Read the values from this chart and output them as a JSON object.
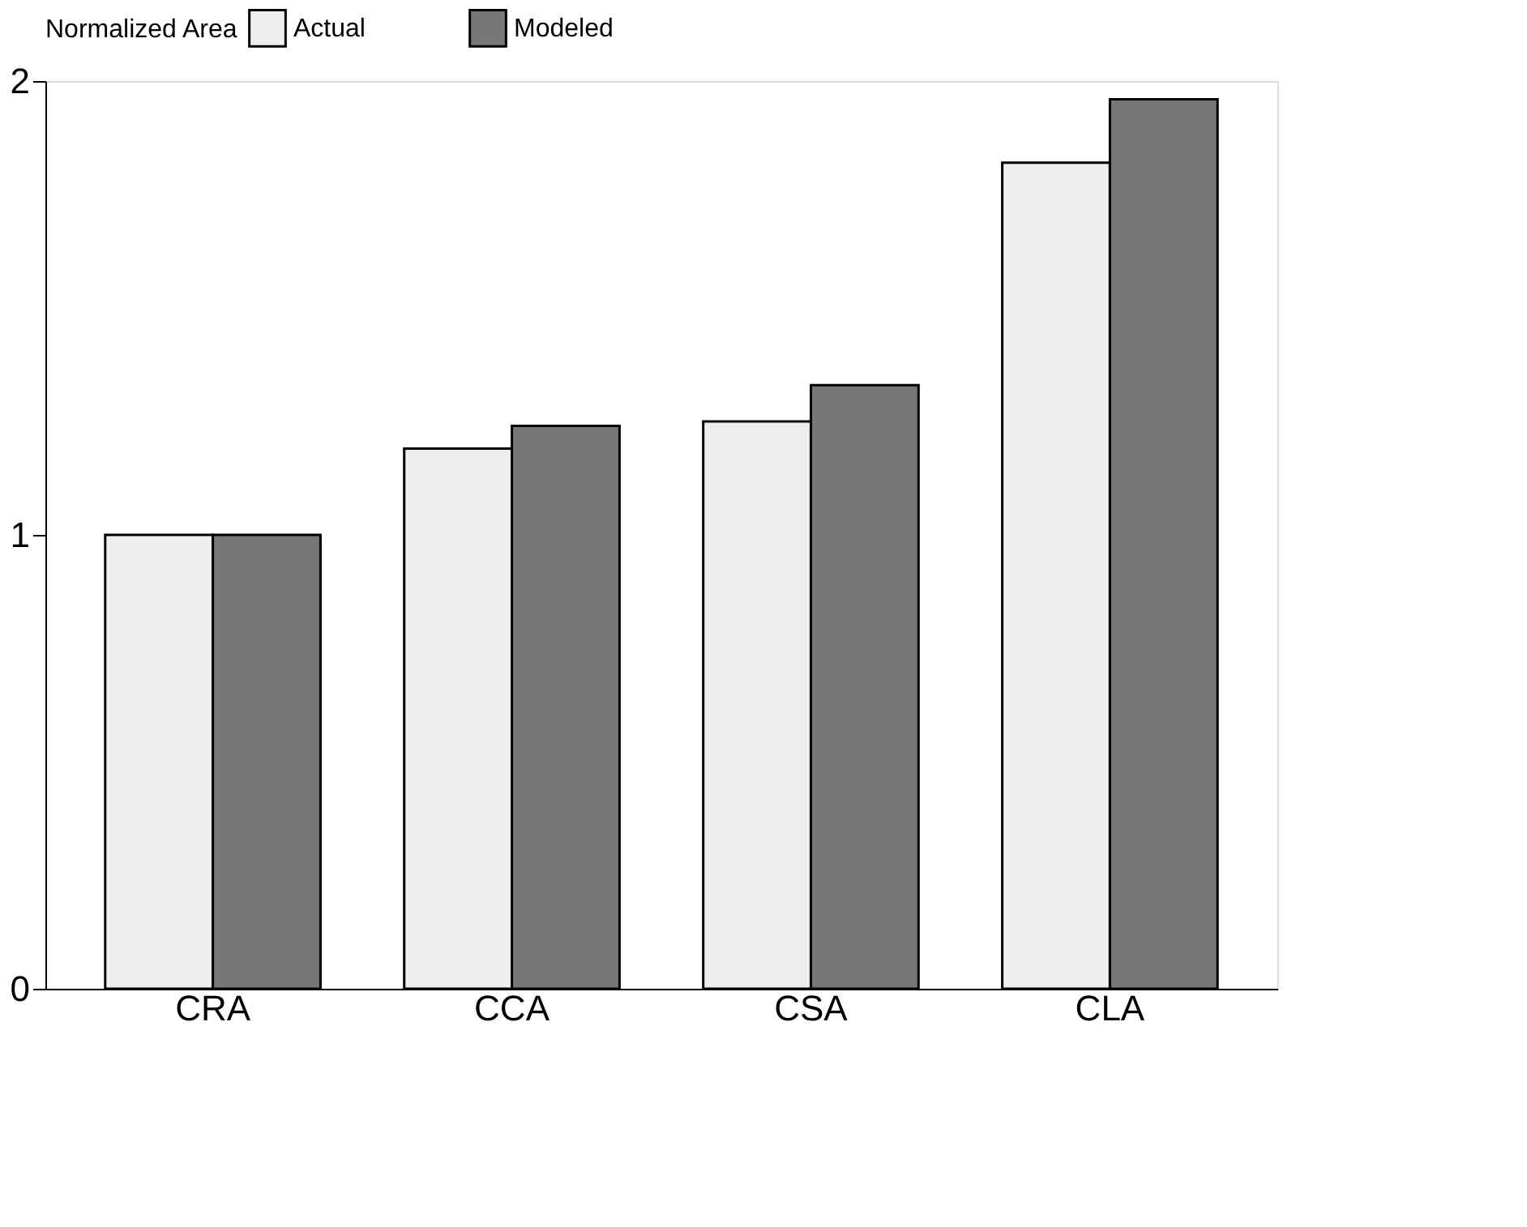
{
  "chart_data": {
    "type": "bar",
    "legend_title": "Normalized Area",
    "categories": [
      "CRA",
      "CCA",
      "CSA",
      "CLA"
    ],
    "series": [
      {
        "name": "Actual",
        "color": "#eeeeee",
        "values": [
          1.0,
          1.19,
          1.25,
          1.82
        ]
      },
      {
        "name": "Modeled",
        "color": "#777777",
        "values": [
          1.0,
          1.24,
          1.33,
          1.96
        ]
      }
    ],
    "ylim": [
      0,
      2
    ],
    "yticks": [
      0,
      1,
      2
    ],
    "grid": false,
    "legend": "top"
  }
}
